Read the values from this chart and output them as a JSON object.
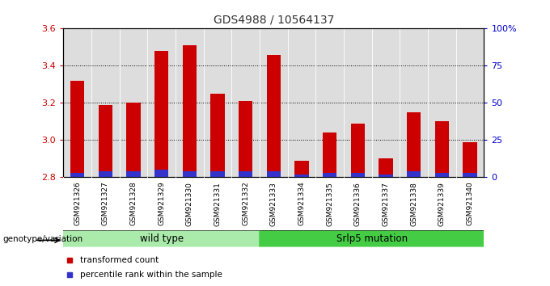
{
  "title": "GDS4988 / 10564137",
  "samples": [
    "GSM921326",
    "GSM921327",
    "GSM921328",
    "GSM921329",
    "GSM921330",
    "GSM921331",
    "GSM921332",
    "GSM921333",
    "GSM921334",
    "GSM921335",
    "GSM921336",
    "GSM921337",
    "GSM921338",
    "GSM921339",
    "GSM921340"
  ],
  "transformed_counts": [
    3.32,
    3.19,
    3.2,
    3.48,
    3.51,
    3.25,
    3.21,
    3.46,
    2.89,
    3.04,
    3.09,
    2.9,
    3.15,
    3.1,
    2.99
  ],
  "percentile_ranks": [
    3,
    4,
    4,
    5,
    4,
    4,
    4,
    4,
    2,
    3,
    3,
    2,
    4,
    3,
    3
  ],
  "ylim": [
    2.8,
    3.6
  ],
  "yticks": [
    2.8,
    3.0,
    3.2,
    3.4,
    3.6
  ],
  "right_yticks": [
    0,
    25,
    50,
    75,
    100
  ],
  "right_ylabels": [
    "0",
    "25",
    "50",
    "75",
    "100%"
  ],
  "bar_color_red": "#cc0000",
  "bar_color_blue": "#3333cc",
  "tick_bg": "#cccccc",
  "axis_bg": "#dddddd",
  "wild_type_color": "#aaeaaa",
  "mutation_color": "#44cc44",
  "wild_type_label": "wild type",
  "mutation_label": "Srlp5 mutation",
  "legend_red_label": "transformed count",
  "legend_blue_label": "percentile rank within the sample",
  "xlabel_left": "genotype/variation",
  "title_color": "#333333",
  "red_tick_color": "#cc0000",
  "blue_tick_color": "#0000cc"
}
